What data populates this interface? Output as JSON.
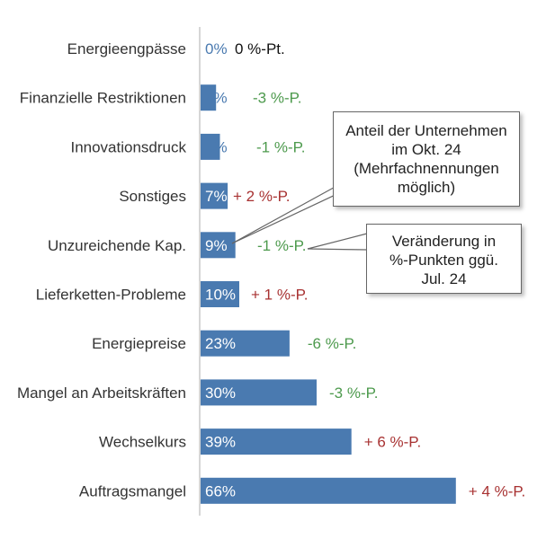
{
  "chart_data": {
    "type": "bar",
    "orientation": "horizontal",
    "categories": [
      "Energieengpässe",
      "Finanzielle Restriktionen",
      "Innovationsdruck",
      "Sonstiges",
      "Unzureichende Kap.",
      "Lieferketten-Probleme",
      "Energiepreise",
      "Mangel an Arbeitskräften",
      "Wechselkurs",
      "Auftragsmangel"
    ],
    "values": [
      0,
      4,
      5,
      7,
      9,
      10,
      23,
      30,
      39,
      66
    ],
    "value_labels": [
      "0%",
      "4%",
      "5%",
      "7%",
      "9%",
      "10%",
      "23%",
      "30%",
      "39%",
      "66%"
    ],
    "changes": [
      0,
      -3,
      -1,
      2,
      -1,
      1,
      -6,
      -3,
      6,
      4
    ],
    "change_labels": [
      "0 %-Pt.",
      "-3 %-P.",
      "-1 %-P.",
      "+ 2 %-P.",
      "-1 %-P.",
      "+ 1 %-P.",
      "-6 %-P.",
      "-3 %-P.",
      "+ 6 %-P.",
      "+ 4 %-P."
    ],
    "xlim": [
      0,
      70
    ],
    "grid": false,
    "bar_color": "#4a7ab0",
    "change_colors": {
      "negative": "#4d9a4d",
      "positive": "#a83232",
      "zero": "#111111"
    }
  },
  "callouts": {
    "share": [
      "Anteil der Unternehmen",
      "im Okt. 24",
      "(Mehrfachnennungen",
      "möglich)"
    ],
    "change": [
      "Veränderung in",
      "%-Punkten ggü.",
      "Jul. 24"
    ]
  }
}
